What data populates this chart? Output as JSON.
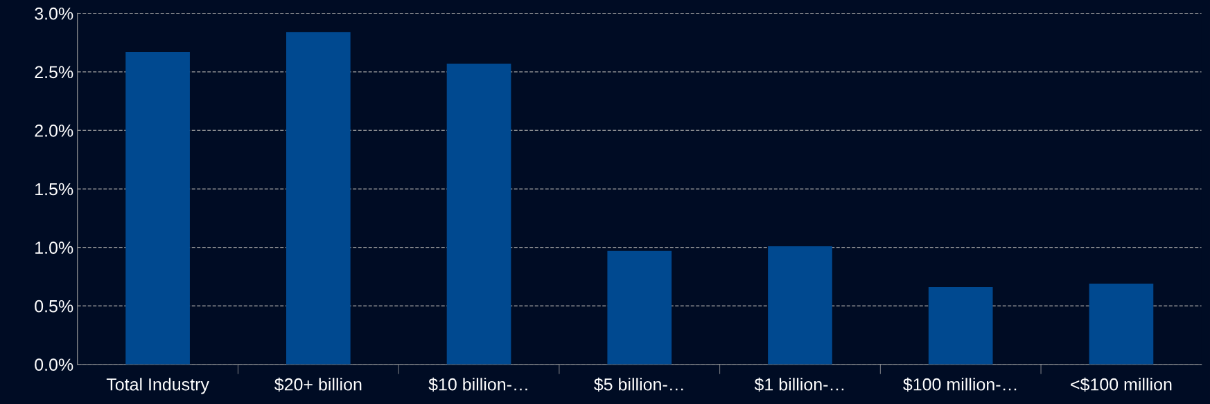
{
  "chart_data": {
    "type": "bar",
    "categories": [
      "Total Industry",
      "$20+ billion",
      "$10 billion-…",
      "$5 billion-…",
      "$1 billion-…",
      "$100 million-…",
      "<$100 million"
    ],
    "values": [
      2.67,
      2.84,
      2.57,
      0.97,
      1.01,
      0.66,
      0.69
    ],
    "color": "#004990",
    "ylim": [
      0,
      3
    ],
    "yticks": [
      {
        "value": 0,
        "label": "0.0%"
      },
      {
        "value": 0.5,
        "label": "0.5%"
      },
      {
        "value": 1,
        "label": "1.0%"
      },
      {
        "value": 1.5,
        "label": "1.5%"
      },
      {
        "value": 2,
        "label": "2.0%"
      },
      {
        "value": 2.5,
        "label": "2.5%"
      },
      {
        "value": 3,
        "label": "3.0%"
      }
    ],
    "grid": "y"
  }
}
